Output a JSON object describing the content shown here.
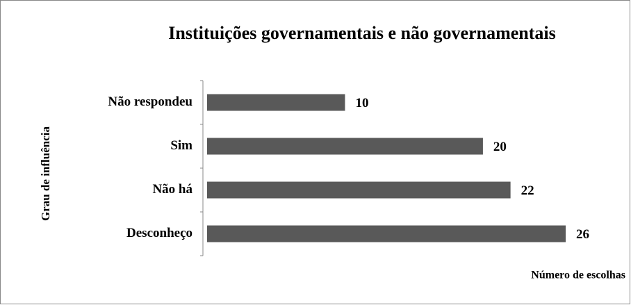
{
  "chart_data": {
    "type": "hbar",
    "title": "Instituições governamentais e não governamentais",
    "y_label": "Grau de influência",
    "x_label": "Número de escolhas",
    "categories": [
      "Não respondeu",
      "Sim",
      "Não há",
      "Desconheço"
    ],
    "values": [
      10,
      20,
      22,
      26
    ],
    "color": "#595959"
  }
}
